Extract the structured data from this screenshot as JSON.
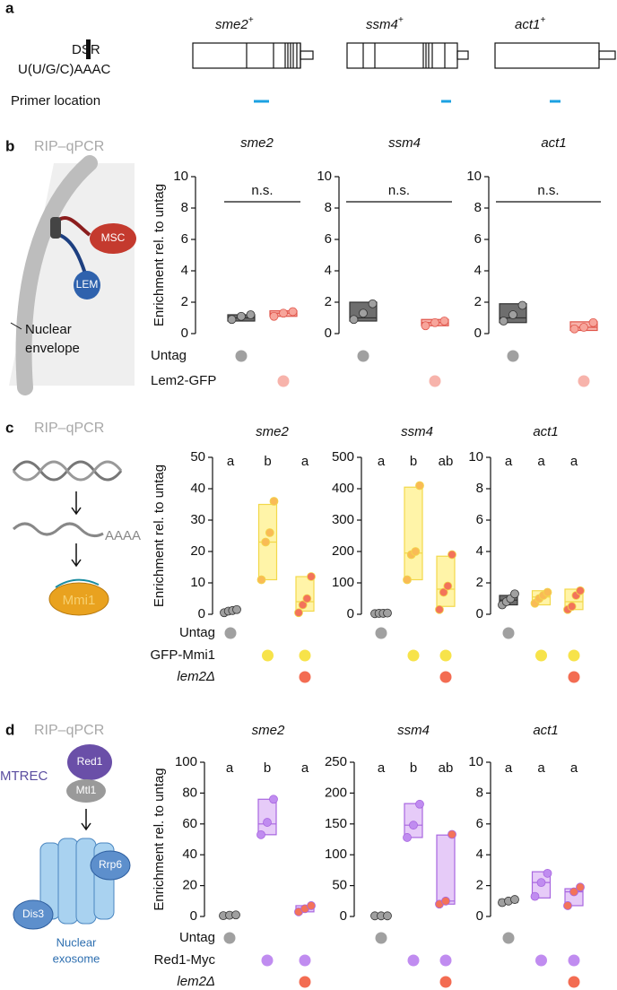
{
  "panel_a": {
    "label": "a",
    "dsr_label": "DSR",
    "motif": "U(U/G/C)AAAC",
    "primer_label": "Primer location",
    "genes": [
      {
        "name": "sme2",
        "sup": "+"
      },
      {
        "name": "ssm4",
        "sup": "+"
      },
      {
        "name": "act1",
        "sup": "+"
      }
    ]
  },
  "panel_b": {
    "label": "b",
    "method": "RIP–qPCR",
    "y_label": "Enrichment  rel. to untag",
    "msc": "MSC",
    "lem": "LEM",
    "envelope": [
      "Nuclear",
      "envelope"
    ],
    "conditions": [
      {
        "label": "Untag",
        "color": "#a0a0a0",
        "present": [
          true,
          false
        ]
      },
      {
        "label": "Lem2-GFP",
        "color": "#f7b3ab",
        "present": [
          false,
          true
        ]
      }
    ]
  },
  "panel_c": {
    "label": "c",
    "method": "RIP–qPCR",
    "y_label": "Enrichment  rel. to untag",
    "polya": "AAAA",
    "protein": "Mmi1",
    "conditions": [
      {
        "label": "Untag",
        "color": "#a0a0a0",
        "present": [
          true,
          false,
          false
        ]
      },
      {
        "label": "GFP-Mmi1",
        "color": "#f7e34a",
        "present": [
          false,
          true,
          true
        ]
      },
      {
        "label": "lem2Δ",
        "color": "#f36c52",
        "present": [
          false,
          false,
          true
        ]
      }
    ]
  },
  "panel_d": {
    "label": "d",
    "method": "RIP–qPCR",
    "y_label": "Enrichment  rel. to untag",
    "complex": "MTREC",
    "red1": "Red1",
    "mtl1": "Mtl1",
    "rrp6": "Rrp6",
    "dis3": "Dis3",
    "exosome": [
      "Nuclear",
      "exosome"
    ],
    "conditions": [
      {
        "label": "Untag",
        "color": "#a0a0a0",
        "present": [
          true,
          false,
          false
        ]
      },
      {
        "label": "Red1-Myc",
        "color": "#c08cf0",
        "present": [
          false,
          true,
          true
        ]
      },
      {
        "label": "lem2Δ",
        "color": "#f36c52",
        "present": [
          false,
          false,
          true
        ]
      }
    ]
  },
  "chart_data": [
    {
      "type": "box",
      "title": "sme2",
      "ylim": [
        0,
        10
      ],
      "yticks": [
        0,
        2,
        4,
        6,
        8,
        10
      ],
      "annotation": "n.s.",
      "groups": [
        {
          "values": [
            0.9,
            1.1,
            1.2
          ],
          "q1": 0.8,
          "median": 1.0,
          "q3": 1.2,
          "box_color": "#6e6e6e",
          "edge_color": "#333333",
          "point_color": "#a0a0a0"
        },
        {
          "values": [
            1.1,
            1.3,
            1.4
          ],
          "q1": 1.1,
          "median": 1.3,
          "q3": 1.45,
          "box_color": "#f7b3ab",
          "edge_color": "#e0554a",
          "point_color": "#f7a59b"
        }
      ]
    },
    {
      "type": "box",
      "title": "ssm4",
      "ylim": [
        0,
        10
      ],
      "yticks": [
        0,
        2,
        4,
        6,
        8,
        10
      ],
      "annotation": "n.s.",
      "groups": [
        {
          "values": [
            0.9,
            1.3,
            1.9
          ],
          "q1": 0.8,
          "median": 1.0,
          "q3": 2.0,
          "box_color": "#6e6e6e",
          "edge_color": "#333333",
          "point_color": "#a0a0a0"
        },
        {
          "values": [
            0.5,
            0.7,
            0.8
          ],
          "q1": 0.5,
          "median": 0.7,
          "q3": 0.9,
          "box_color": "#f7b3ab",
          "edge_color": "#e0554a",
          "point_color": "#f7a59b"
        }
      ]
    },
    {
      "type": "box",
      "title": "act1",
      "ylim": [
        0,
        10
      ],
      "yticks": [
        0,
        2,
        4,
        6,
        8,
        10
      ],
      "annotation": "n.s.",
      "groups": [
        {
          "values": [
            0.8,
            1.2,
            1.8
          ],
          "q1": 0.7,
          "median": 1.0,
          "q3": 1.9,
          "box_color": "#6e6e6e",
          "edge_color": "#333333",
          "point_color": "#a0a0a0"
        },
        {
          "values": [
            0.3,
            0.4,
            0.7
          ],
          "q1": 0.2,
          "median": 0.4,
          "q3": 0.75,
          "box_color": "#f7b3ab",
          "edge_color": "#e0554a",
          "point_color": "#f7a59b"
        }
      ]
    },
    {
      "type": "box",
      "title": "sme2",
      "ylim": [
        0,
        50
      ],
      "yticks": [
        0,
        10,
        20,
        30,
        40,
        50
      ],
      "letters": [
        "a",
        "b",
        "a"
      ],
      "groups": [
        {
          "values": [
            0.5,
            1,
            1.2,
            1.5
          ],
          "q1": 0.6,
          "median": 1,
          "q3": 1.3,
          "box_color": "#6e6e6e",
          "edge_color": "#333333",
          "point_color": "#a0a0a0"
        },
        {
          "values": [
            11,
            23,
            26,
            36
          ],
          "q1": 11,
          "median": 23,
          "q3": 35,
          "box_color": "#fff4a8",
          "edge_color": "#f2d84a",
          "point_color": "#f9bb55"
        },
        {
          "values": [
            0.5,
            3,
            5,
            12
          ],
          "q1": 1,
          "median": 4,
          "q3": 12,
          "box_color": "#fff4a8",
          "edge_color": "#f2d84a",
          "point_color": "#f3735a"
        }
      ]
    },
    {
      "type": "box",
      "title": "ssm4",
      "ylim": [
        0,
        500
      ],
      "yticks": [
        0,
        100,
        200,
        300,
        400,
        500
      ],
      "letters": [
        "a",
        "b",
        "ab"
      ],
      "groups": [
        {
          "values": [
            2,
            3,
            3,
            4
          ],
          "q1": 2,
          "median": 3,
          "q3": 4,
          "box_color": "#6e6e6e",
          "edge_color": "#333333",
          "point_color": "#a0a0a0"
        },
        {
          "values": [
            110,
            190,
            200,
            410
          ],
          "q1": 110,
          "median": 195,
          "q3": 405,
          "box_color": "#fff4a8",
          "edge_color": "#f2d84a",
          "point_color": "#f9bb55"
        },
        {
          "values": [
            15,
            70,
            90,
            190
          ],
          "q1": 25,
          "median": 80,
          "q3": 185,
          "box_color": "#fff4a8",
          "edge_color": "#f2d84a",
          "point_color": "#f3735a"
        }
      ]
    },
    {
      "type": "box",
      "title": "act1",
      "ylim": [
        0,
        10
      ],
      "yticks": [
        0,
        2,
        4,
        6,
        8,
        10
      ],
      "letters": [
        "a",
        "a",
        "a"
      ],
      "groups": [
        {
          "values": [
            0.6,
            0.8,
            1,
            1.3
          ],
          "q1": 0.6,
          "median": 0.9,
          "q3": 1.2,
          "box_color": "#6e6e6e",
          "edge_color": "#333333",
          "point_color": "#a0a0a0"
        },
        {
          "values": [
            0.7,
            1,
            1.2,
            1.4
          ],
          "q1": 0.6,
          "median": 1.1,
          "q3": 1.5,
          "box_color": "#fff4a8",
          "edge_color": "#f2d84a",
          "point_color": "#f9bb55"
        },
        {
          "values": [
            0.3,
            0.5,
            1.2,
            1.5
          ],
          "q1": 0.3,
          "median": 0.8,
          "q3": 1.6,
          "box_color": "#fff4a8",
          "edge_color": "#f2d84a",
          "point_color": "#f3735a"
        }
      ]
    },
    {
      "type": "box",
      "title": "sme2",
      "ylim": [
        0,
        100
      ],
      "yticks": [
        0,
        20,
        40,
        60,
        80,
        100
      ],
      "letters": [
        "a",
        "b",
        "a"
      ],
      "groups": [
        {
          "values": [
            0.5,
            0.8,
            1
          ],
          "q1": 0.5,
          "median": 0.8,
          "q3": 1,
          "box_color": "#6e6e6e",
          "edge_color": "#333333",
          "point_color": "#a0a0a0"
        },
        {
          "values": [
            53,
            61,
            76
          ],
          "q1": 53,
          "median": 60,
          "q3": 76,
          "box_color": "#e6cbf8",
          "edge_color": "#a866e0",
          "point_color": "#c08cf0"
        },
        {
          "values": [
            3,
            5,
            7
          ],
          "q1": 3,
          "median": 5,
          "q3": 7,
          "box_color": "#e6cbf8",
          "edge_color": "#a866e0",
          "point_color": "#f3735a"
        }
      ]
    },
    {
      "type": "box",
      "title": "ssm4",
      "ylim": [
        0,
        250
      ],
      "yticks": [
        0,
        50,
        100,
        150,
        200,
        250
      ],
      "letters": [
        "a",
        "b",
        "ab"
      ],
      "groups": [
        {
          "values": [
            1,
            1,
            1
          ],
          "q1": 0.5,
          "median": 1,
          "q3": 1.5,
          "box_color": "#6e6e6e",
          "edge_color": "#333333",
          "point_color": "#a0a0a0"
        },
        {
          "values": [
            128,
            148,
            182
          ],
          "q1": 128,
          "median": 148,
          "q3": 183,
          "box_color": "#e6cbf8",
          "edge_color": "#a866e0",
          "point_color": "#c08cf0"
        },
        {
          "values": [
            20,
            25,
            133
          ],
          "q1": 20,
          "median": 25,
          "q3": 132,
          "box_color": "#e6cbf8",
          "edge_color": "#a866e0",
          "point_color": "#f3735a"
        }
      ]
    },
    {
      "type": "box",
      "title": "act1",
      "ylim": [
        0,
        10
      ],
      "yticks": [
        0,
        2,
        4,
        6,
        8,
        10
      ],
      "letters": [
        "a",
        "a",
        "a"
      ],
      "groups": [
        {
          "values": [
            0.9,
            1,
            1.1
          ],
          "q1": 0.9,
          "median": 1,
          "q3": 1.1,
          "box_color": "#6e6e6e",
          "edge_color": "#333333",
          "point_color": "#a0a0a0"
        },
        {
          "values": [
            1.3,
            2.2,
            2.8
          ],
          "q1": 1.2,
          "median": 2.2,
          "q3": 2.9,
          "box_color": "#e6cbf8",
          "edge_color": "#a866e0",
          "point_color": "#c08cf0"
        },
        {
          "values": [
            0.7,
            1.6,
            1.9
          ],
          "q1": 0.7,
          "median": 1.6,
          "q3": 1.8,
          "box_color": "#e6cbf8",
          "edge_color": "#a866e0",
          "point_color": "#f3735a"
        }
      ]
    }
  ]
}
